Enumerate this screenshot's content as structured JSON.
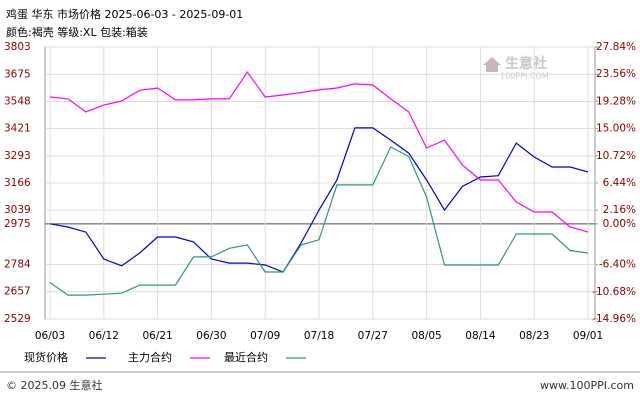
{
  "chart_data": {
    "type": "line",
    "title": "鸡蛋 华东 市场价格 2025-06-03 - 2025-09-01",
    "subtitle": "颜色:褐壳 等级:XL 包装:箱装",
    "footer": "© 2025.09 生意社",
    "website": "www.100PPI.com",
    "watermark": "生意社",
    "watermark_sub": "100PPI.COM",
    "x": [
      "06/03",
      "06/06",
      "06/09",
      "06/12",
      "06/15",
      "06/18",
      "06/21",
      "06/24",
      "06/27",
      "06/30",
      "07/03",
      "07/06",
      "07/09",
      "07/12",
      "07/15",
      "07/18",
      "07/21",
      "07/24",
      "07/27",
      "07/30",
      "08/02",
      "08/05",
      "08/08",
      "08/11",
      "08/14",
      "08/17",
      "08/20",
      "08/23",
      "08/26",
      "08/29",
      "09/01"
    ],
    "xlim": [
      "06/03",
      "09/01"
    ],
    "xticks": [
      "06/03",
      "06/12",
      "06/21",
      "06/30",
      "07/09",
      "07/18",
      "07/27",
      "08/05",
      "08/14",
      "08/23",
      "09/01"
    ],
    "ylim": [
      2529,
      3803
    ],
    "yticks": [
      2529,
      2657,
      2784,
      2975,
      3039,
      3166,
      3293,
      3421,
      3548,
      3675,
      3803
    ],
    "y2lim": [
      -14.96,
      27.84
    ],
    "y2ticks": [
      {
        "value": -14.96,
        "label": "-14.96%"
      },
      {
        "value": -10.68,
        "label": "-10.68%"
      },
      {
        "value": -6.4,
        "label": "-6.40%"
      },
      {
        "value": 0,
        "label": "0.00%"
      },
      {
        "value": 2.16,
        "label": "2.16%"
      },
      {
        "value": 6.44,
        "label": "6.44%"
      },
      {
        "value": 10.72,
        "label": "10.72%"
      },
      {
        "value": 15,
        "label": "15.00%"
      },
      {
        "value": 19.28,
        "label": "19.28%"
      },
      {
        "value": 23.56,
        "label": "23.56%"
      },
      {
        "value": 27.84,
        "label": "27.84%"
      }
    ],
    "grid": true,
    "series": [
      {
        "name": "现货价格",
        "color": "#0000cc",
        "values": [
          2975,
          2960,
          2936,
          2810,
          2778,
          2838,
          2913,
          2913,
          2890,
          2810,
          2791,
          2791,
          2782,
          2749,
          2885,
          3039,
          3180,
          3424,
          3424,
          3367,
          3306,
          3180,
          3039,
          3150,
          3194,
          3200,
          3353,
          3288,
          3241,
          3241,
          3218
        ]
      },
      {
        "name": "主力合约",
        "color": "#ff00ff",
        "values": [
          3569,
          3560,
          3499,
          3531,
          3550,
          3600,
          3611,
          3555,
          3555,
          3560,
          3560,
          3686,
          3569,
          3578,
          3590,
          3602,
          3611,
          3630,
          3625,
          3560,
          3499,
          3330,
          3367,
          3250,
          3180,
          3180,
          3077,
          3030,
          3030,
          2960,
          2936
        ]
      },
      {
        "name": "最近合约",
        "color": "#339966",
        "values": [
          2700,
          2641,
          2641,
          2645,
          2650,
          2688,
          2688,
          2688,
          2820,
          2820,
          2860,
          2876,
          2749,
          2749,
          2876,
          2900,
          3157,
          3157,
          3157,
          3335,
          3290,
          3100,
          2782,
          2782,
          2782,
          2782,
          2927,
          2927,
          2927,
          2850,
          2838
        ]
      }
    ]
  }
}
